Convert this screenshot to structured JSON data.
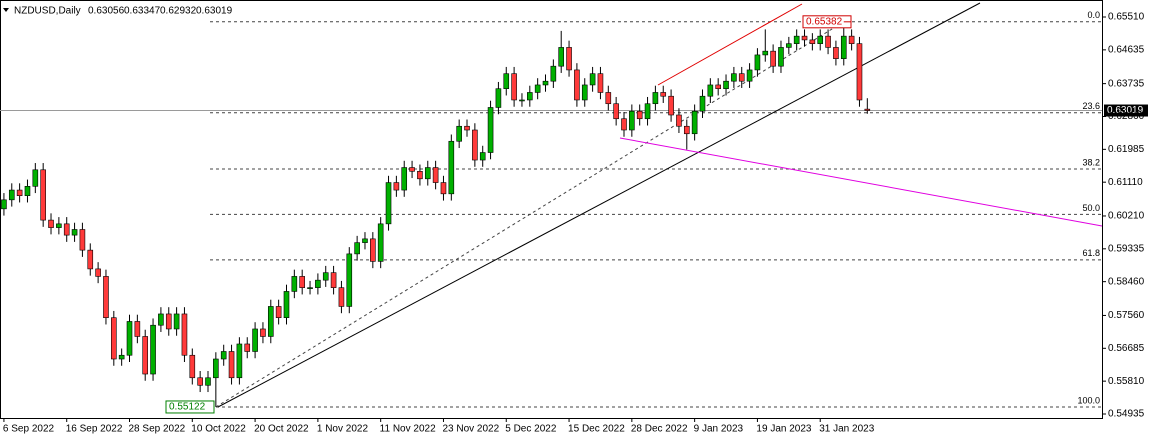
{
  "chart_data": {
    "type": "candlestick",
    "title": "NZDUSD,Daily",
    "up_color": "#00b000",
    "down_color": "#ff3a3a",
    "xlim": [
      -0.5,
      139.9
    ],
    "ylim": [
      0.54775,
      0.65963
    ],
    "xticks": [
      {
        "value": 0,
        "label": "6 Sep 2022"
      },
      {
        "value": 8,
        "label": "16 Sep 2022"
      },
      {
        "value": 16,
        "label": "28 Sep 2022"
      },
      {
        "value": 24,
        "label": "10 Oct 2022"
      },
      {
        "value": 32,
        "label": "20 Oct 2022"
      },
      {
        "value": 40,
        "label": "1 Nov 2022"
      },
      {
        "value": 48,
        "label": "11 Nov 2022"
      },
      {
        "value": 56,
        "label": "23 Nov 2022"
      },
      {
        "value": 64,
        "label": "5 Dec 2022"
      },
      {
        "value": 72,
        "label": "15 Dec 2022"
      },
      {
        "value": 80,
        "label": "28 Dec 2022"
      },
      {
        "value": 88,
        "label": "9 Jan 2023"
      },
      {
        "value": 96,
        "label": "19 Jan 2023"
      },
      {
        "value": 104,
        "label": "31 Jan 2023"
      }
    ],
    "yticks": [
      {
        "value": 0.6551,
        "label": "0.65510"
      },
      0.64635,
      0.63735,
      {
        "value": 0.6286,
        "label": "0.62860"
      },
      0.61985,
      {
        "value": 0.6111,
        "label": "0.61110"
      },
      {
        "value": 0.6021,
        "label": "0.60210"
      },
      0.59335,
      {
        "value": 0.5846,
        "label": "0.58460"
      },
      {
        "value": 0.5756,
        "label": "0.57560"
      },
      0.56685,
      {
        "value": 0.5581,
        "label": "0.55810"
      },
      0.54935
    ],
    "open": [
      0.604,
      0.6064,
      0.609,
      0.6075,
      0.61,
      0.6144,
      0.601,
      0.599,
      0.6,
      0.597,
      0.5985,
      0.593,
      0.588,
      0.586,
      0.575,
      0.564,
      0.565,
      0.574,
      0.57,
      0.56,
      0.573,
      0.576,
      0.572,
      0.576,
      0.565,
      0.559,
      0.557,
      0.559,
      0.564,
      0.566,
      0.559,
      0.568,
      0.566,
      0.572,
      0.57,
      0.578,
      0.575,
      0.582,
      0.586,
      0.583,
      0.583,
      0.585,
      0.587,
      0.583,
      0.578,
      0.592,
      0.595,
      0.596,
      0.59,
      0.6,
      0.611,
      0.609,
      0.615,
      0.614,
      0.612,
      0.615,
      0.611,
      0.608,
      0.622,
      0.626,
      0.625,
      0.617,
      0.619,
      0.631,
      0.636,
      0.64,
      0.633,
      0.633,
      0.635,
      0.637,
      0.638,
      0.642,
      0.647,
      0.641,
      0.633,
      0.637,
      0.64,
      0.635,
      0.632,
      0.628,
      0.625,
      0.63,
      0.628,
      0.632,
      0.635,
      0.634,
      0.629,
      0.626,
      0.624,
      0.63,
      0.634,
      0.637,
      0.636,
      0.638,
      0.64,
      0.638,
      0.641,
      0.645,
      0.646,
      0.642,
      0.647,
      0.648,
      0.65,
      0.649,
      0.648,
      0.65,
      0.647,
      0.644,
      0.65,
      0.648,
      0.63056
    ],
    "high": [
      0.6082,
      0.6108,
      0.6108,
      0.6118,
      0.6162,
      0.6162,
      0.6028,
      0.6018,
      0.6018,
      0.6003,
      0.6003,
      0.5948,
      0.5898,
      0.5878,
      0.5768,
      0.5668,
      0.5758,
      0.5758,
      0.5718,
      0.5748,
      0.5778,
      0.5778,
      0.5778,
      0.5778,
      0.5668,
      0.5608,
      0.5608,
      0.5658,
      0.5678,
      0.5678,
      0.5698,
      0.5698,
      0.5738,
      0.5738,
      0.5798,
      0.5798,
      0.5838,
      0.5878,
      0.5878,
      0.5848,
      0.5868,
      0.5888,
      0.5888,
      0.5848,
      0.5938,
      0.5968,
      0.5978,
      0.5978,
      0.6018,
      0.6128,
      0.6128,
      0.6168,
      0.6168,
      0.6158,
      0.6168,
      0.6168,
      0.6128,
      0.6238,
      0.6278,
      0.6278,
      0.6268,
      0.6208,
      0.6328,
      0.6378,
      0.6418,
      0.6418,
      0.6348,
      0.6368,
      0.6388,
      0.6398,
      0.6438,
      0.6514,
      0.6488,
      0.6428,
      0.6388,
      0.6418,
      0.6418,
      0.6368,
      0.6338,
      0.6298,
      0.6318,
      0.6318,
      0.6338,
      0.6368,
      0.6368,
      0.6358,
      0.6308,
      0.6278,
      0.6318,
      0.6358,
      0.6388,
      0.6388,
      0.6398,
      0.6418,
      0.6418,
      0.6428,
      0.6468,
      0.6518,
      0.6478,
      0.6488,
      0.6498,
      0.6518,
      0.6518,
      0.6508,
      0.6518,
      0.6518,
      0.6488,
      0.65382,
      0.6518,
      0.6498,
      0.63347
    ],
    "low": [
      0.6022,
      0.6046,
      0.6057,
      0.6057,
      0.6082,
      0.5992,
      0.5972,
      0.5972,
      0.5952,
      0.5952,
      0.5912,
      0.5862,
      0.5842,
      0.5732,
      0.5622,
      0.5622,
      0.5632,
      0.5682,
      0.5582,
      0.5582,
      0.5712,
      0.5702,
      0.5702,
      0.5632,
      0.5572,
      0.5552,
      0.5552,
      0.55122,
      0.5622,
      0.5572,
      0.5572,
      0.5642,
      0.5642,
      0.5682,
      0.5682,
      0.5732,
      0.5732,
      0.5802,
      0.5812,
      0.5812,
      0.5812,
      0.5832,
      0.5812,
      0.5762,
      0.5762,
      0.5902,
      0.5932,
      0.5882,
      0.5882,
      0.5982,
      0.6072,
      0.6072,
      0.6122,
      0.6102,
      0.6102,
      0.6092,
      0.6062,
      0.6062,
      0.6202,
      0.6232,
      0.6152,
      0.6152,
      0.6172,
      0.6292,
      0.6342,
      0.6312,
      0.6312,
      0.6312,
      0.6332,
      0.6352,
      0.6362,
      0.6402,
      0.6392,
      0.6312,
      0.6312,
      0.6352,
      0.6332,
      0.6302,
      0.6262,
      0.6232,
      0.6232,
      0.6262,
      0.6262,
      0.6302,
      0.6322,
      0.6272,
      0.6242,
      0.6198,
      0.6222,
      0.6282,
      0.6322,
      0.6342,
      0.6342,
      0.6362,
      0.6362,
      0.6362,
      0.6392,
      0.6432,
      0.6402,
      0.6402,
      0.6452,
      0.6462,
      0.6472,
      0.6462,
      0.6462,
      0.6452,
      0.6422,
      0.6422,
      0.6462,
      0.6312,
      0.62932
    ],
    "close": [
      0.6064,
      0.609,
      0.6075,
      0.61,
      0.6144,
      0.601,
      0.599,
      0.6,
      0.597,
      0.5985,
      0.593,
      0.588,
      0.586,
      0.575,
      0.564,
      0.565,
      0.574,
      0.57,
      0.56,
      0.573,
      0.576,
      0.572,
      0.576,
      0.565,
      0.559,
      0.557,
      0.559,
      0.564,
      0.566,
      0.559,
      0.568,
      0.566,
      0.572,
      0.57,
      0.578,
      0.575,
      0.582,
      0.586,
      0.583,
      0.583,
      0.585,
      0.587,
      0.583,
      0.578,
      0.592,
      0.595,
      0.596,
      0.59,
      0.6,
      0.611,
      0.609,
      0.615,
      0.614,
      0.612,
      0.615,
      0.611,
      0.608,
      0.622,
      0.626,
      0.625,
      0.617,
      0.619,
      0.631,
      0.636,
      0.64,
      0.633,
      0.633,
      0.635,
      0.637,
      0.638,
      0.642,
      0.647,
      0.641,
      0.633,
      0.637,
      0.64,
      0.635,
      0.632,
      0.628,
      0.625,
      0.63,
      0.628,
      0.632,
      0.635,
      0.634,
      0.629,
      0.626,
      0.624,
      0.63,
      0.634,
      0.637,
      0.636,
      0.638,
      0.64,
      0.638,
      0.641,
      0.645,
      0.646,
      0.642,
      0.647,
      0.648,
      0.65,
      0.649,
      0.648,
      0.65,
      0.647,
      0.644,
      0.65,
      0.648,
      0.633,
      0.63019
    ],
    "fibonacci": {
      "high": 0.65382,
      "low": 0.55122,
      "levels": [
        {
          "value": 0,
          "label": "0.0"
        },
        {
          "value": 23.6,
          "label": "23.6"
        },
        {
          "value": 38.2,
          "label": "38.2"
        },
        {
          "value": 50,
          "label": "50.0"
        },
        {
          "value": 61.8,
          "label": "61.8"
        },
        {
          "value": 100,
          "label": "100.0"
        }
      ]
    }
  }
}
